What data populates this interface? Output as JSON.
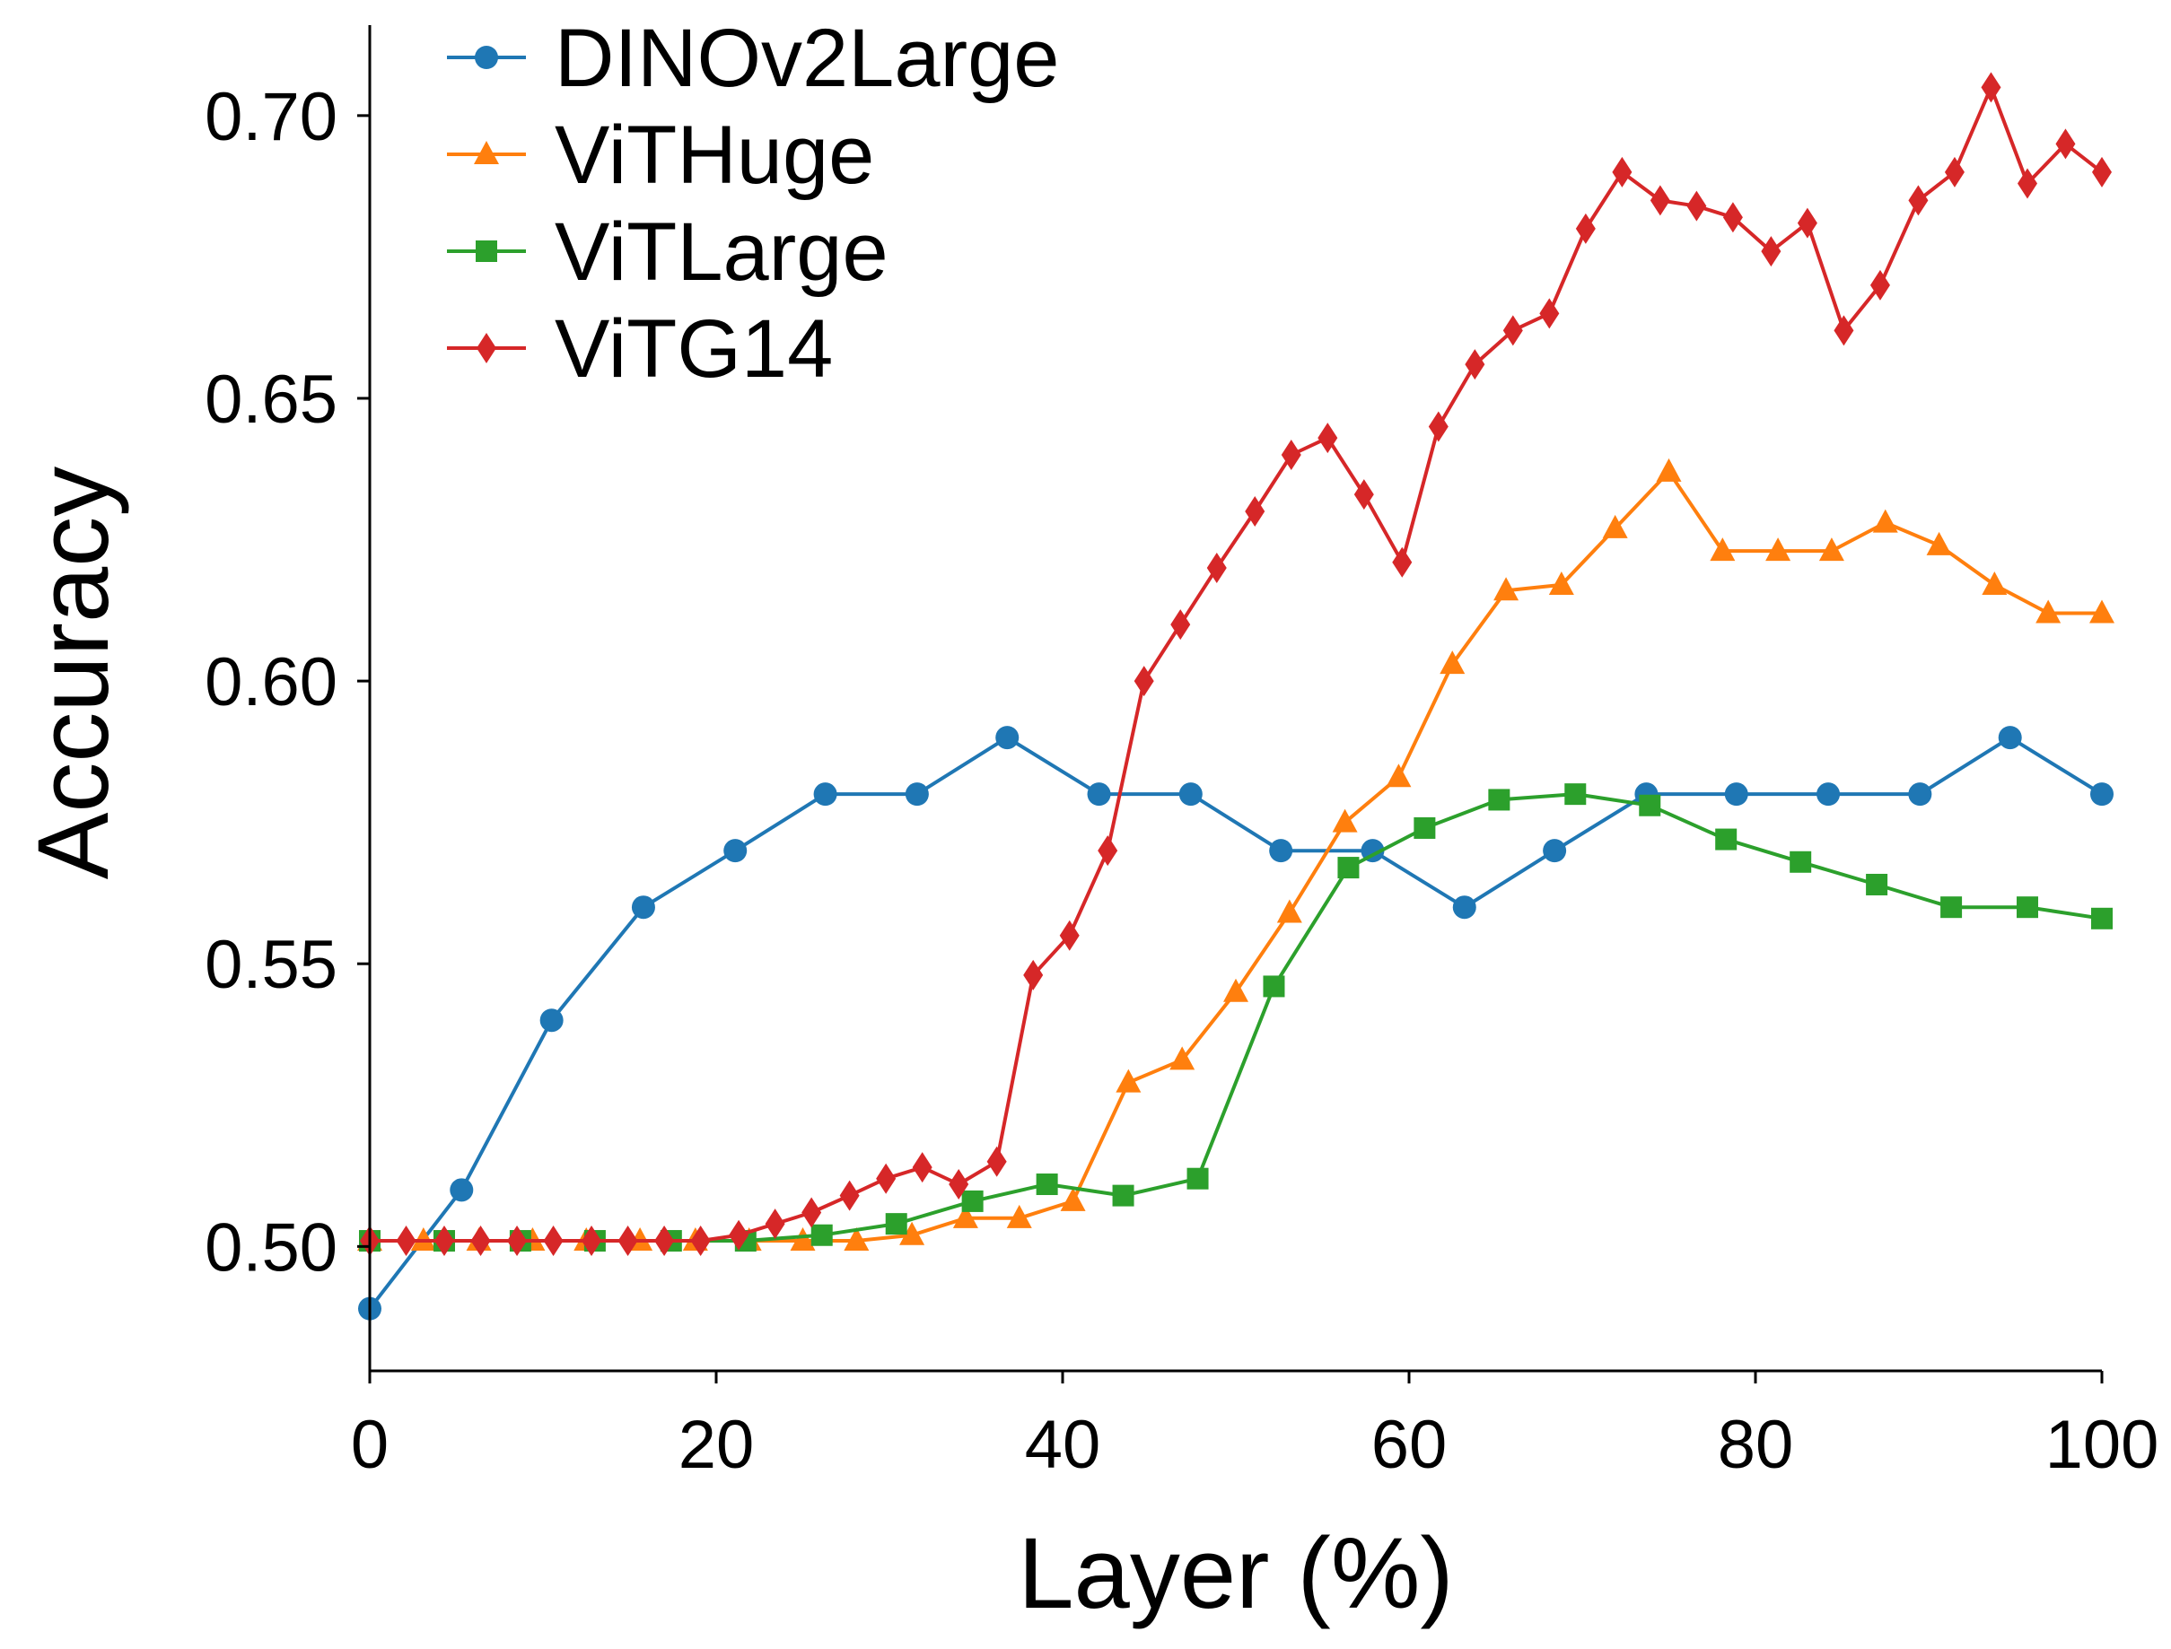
{
  "chart_data": {
    "type": "line",
    "title": "",
    "xlabel": "Layer (%)",
    "ylabel": "Accuracy",
    "xlim": [
      0,
      100
    ],
    "ylim": [
      0.478,
      0.716
    ],
    "xticks": [
      0,
      20,
      40,
      60,
      80,
      100
    ],
    "yticks": [
      0.5,
      0.55,
      0.6,
      0.65,
      0.7
    ],
    "xtick_labels": [
      "0",
      "20",
      "40",
      "60",
      "80",
      "100"
    ],
    "ytick_labels": [
      "0.50",
      "0.55",
      "0.60",
      "0.65",
      "0.70"
    ],
    "grid": false,
    "legend": "top-left",
    "series": [
      {
        "name": "DINOv2Large",
        "color": "#1f77b4",
        "marker": "circle",
        "x": [
          0,
          5.3,
          10.5,
          15.8,
          21.1,
          26.3,
          31.6,
          36.8,
          42.1,
          47.4,
          52.6,
          57.9,
          63.2,
          68.4,
          73.7,
          78.9,
          84.2,
          89.5,
          94.7,
          100
        ],
        "y": [
          0.489,
          0.51,
          0.54,
          0.56,
          0.57,
          0.58,
          0.58,
          0.59,
          0.58,
          0.58,
          0.57,
          0.57,
          0.56,
          0.57,
          0.58,
          0.58,
          0.58,
          0.58,
          0.59,
          0.58
        ]
      },
      {
        "name": "ViTHuge",
        "color": "#ff7f0e",
        "marker": "triangle",
        "x": [
          0,
          3.1,
          6.3,
          9.4,
          12.5,
          15.6,
          18.8,
          21.9,
          25.0,
          28.1,
          31.3,
          34.4,
          37.5,
          40.6,
          43.8,
          46.9,
          50.0,
          53.1,
          56.3,
          59.4,
          62.5,
          65.6,
          68.8,
          71.9,
          75.0,
          78.1,
          81.3,
          84.4,
          87.5,
          90.6,
          93.8,
          96.9,
          100
        ],
        "y": [
          0.501,
          0.501,
          0.501,
          0.501,
          0.501,
          0.501,
          0.501,
          0.501,
          0.501,
          0.501,
          0.502,
          0.505,
          0.505,
          0.508,
          0.529,
          0.533,
          0.545,
          0.559,
          0.575,
          0.583,
          0.603,
          0.616,
          0.617,
          0.627,
          0.637,
          0.623,
          0.623,
          0.623,
          0.628,
          0.624,
          0.617,
          0.612,
          0.612
        ]
      },
      {
        "name": "ViTLarge",
        "color": "#2ca02c",
        "marker": "square",
        "x": [
          0,
          4.3,
          8.7,
          13.0,
          17.4,
          21.7,
          26.1,
          30.4,
          34.8,
          39.1,
          43.5,
          47.8,
          52.2,
          56.5,
          60.9,
          65.2,
          69.6,
          73.9,
          78.3,
          82.6,
          87.0,
          91.3,
          95.7,
          100
        ],
        "y": [
          0.501,
          0.501,
          0.501,
          0.501,
          0.501,
          0.501,
          0.502,
          0.504,
          0.508,
          0.511,
          0.509,
          0.512,
          0.546,
          0.567,
          0.574,
          0.579,
          0.58,
          0.578,
          0.572,
          0.568,
          0.564,
          0.56,
          0.56,
          0.558
        ]
      },
      {
        "name": "ViTG14",
        "color": "#d62728",
        "marker": "diamond",
        "x": [
          0,
          2.1,
          4.3,
          6.4,
          8.5,
          10.6,
          12.8,
          14.9,
          17.0,
          19.1,
          21.3,
          23.4,
          25.5,
          27.7,
          29.8,
          31.9,
          34.0,
          36.2,
          38.3,
          40.4,
          42.6,
          44.7,
          46.8,
          48.9,
          51.1,
          53.2,
          55.3,
          57.4,
          59.6,
          61.7,
          63.8,
          66.0,
          68.1,
          70.2,
          72.3,
          74.5,
          76.6,
          78.7,
          80.9,
          83.0,
          85.1,
          87.2,
          89.4,
          91.5,
          93.6,
          95.7,
          97.9,
          100
        ],
        "y": [
          0.501,
          0.501,
          0.501,
          0.501,
          0.501,
          0.501,
          0.501,
          0.501,
          0.501,
          0.501,
          0.502,
          0.504,
          0.506,
          0.509,
          0.512,
          0.514,
          0.511,
          0.515,
          0.548,
          0.555,
          0.57,
          0.6,
          0.61,
          0.62,
          0.63,
          0.64,
          0.643,
          0.633,
          0.621,
          0.645,
          0.656,
          0.662,
          0.665,
          0.68,
          0.69,
          0.685,
          0.684,
          0.682,
          0.676,
          0.681,
          0.662,
          0.67,
          0.685,
          0.69,
          0.705,
          0.688,
          0.695,
          0.69
        ]
      }
    ]
  }
}
